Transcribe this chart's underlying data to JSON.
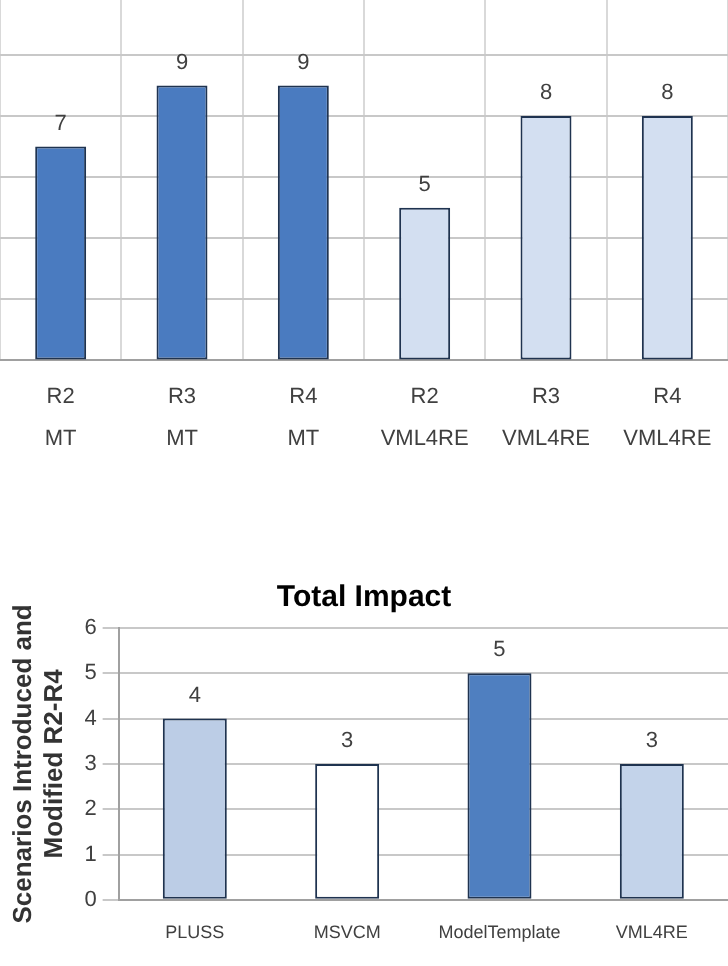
{
  "chart_data": [
    {
      "type": "bar",
      "categories": [
        "R2\nMT",
        "R3\nMT",
        "R4\nMT",
        "R2\nVML4RE",
        "R3\nVML4RE",
        "R4\nVML4RE"
      ],
      "values": [
        7,
        9,
        9,
        5,
        8,
        8
      ],
      "colors": [
        "#4a7bc0",
        "#4a7bc0",
        "#4a7bc0",
        "#d3dff1",
        "#d3dff1",
        "#d3dff1"
      ],
      "ylim": [
        0,
        11.8
      ],
      "yticks": [
        {
          "value": 0,
          "label": null
        },
        {
          "value": 2,
          "label": null
        },
        {
          "value": 4,
          "label": null
        },
        {
          "value": 6,
          "label": null
        },
        {
          "value": 8,
          "label": null
        },
        {
          "value": 10,
          "label": null
        }
      ],
      "grid": true,
      "tick_labels": "x",
      "data_labels": true
    },
    {
      "type": "bar",
      "title": "Total Impact",
      "ylabel": "Scenarios Introduced and\nModified R2-R4",
      "categories": [
        "PLUSS",
        "MSVCM",
        "ModelTemplate",
        "VML4RE"
      ],
      "values": [
        4,
        3,
        5,
        3
      ],
      "colors": [
        "#bccde6",
        "#ffffff",
        "#4f7fc0",
        "#c3d3ea"
      ],
      "ylim": [
        0,
        6
      ],
      "yticks": [
        0,
        1,
        2,
        3,
        4,
        5,
        6
      ],
      "grid": "y",
      "data_labels": true
    }
  ]
}
